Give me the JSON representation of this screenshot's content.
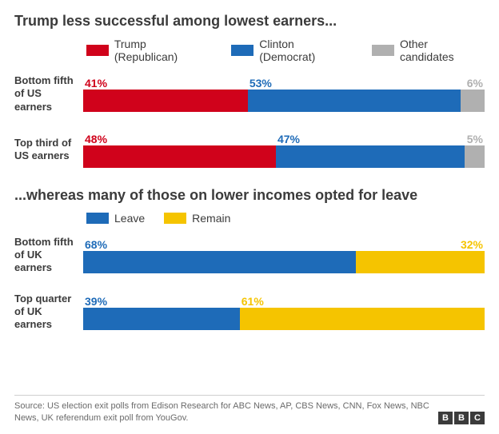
{
  "colors": {
    "trump": "#d0021b",
    "clinton": "#1e6bb8",
    "other": "#b0b0b0",
    "leave": "#1e6bb8",
    "remain": "#f5c400",
    "text": "#3b3b3b"
  },
  "section1": {
    "title": "Trump less successful among lowest earners...",
    "legend": [
      {
        "label": "Trump (Republican)",
        "colorKey": "trump"
      },
      {
        "label": "Clinton (Democrat)",
        "colorKey": "clinton"
      },
      {
        "label": "Other candidates",
        "colorKey": "other"
      }
    ],
    "rows": [
      {
        "label": "Bottom fifth of US earners",
        "segments": [
          {
            "value": 41,
            "display": "41%",
            "colorKey": "trump",
            "align": "left"
          },
          {
            "value": 53,
            "display": "53%",
            "colorKey": "clinton",
            "align": "left"
          },
          {
            "value": 6,
            "display": "6%",
            "colorKey": "other",
            "align": "right"
          }
        ]
      },
      {
        "label": "Top third of US earners",
        "segments": [
          {
            "value": 48,
            "display": "48%",
            "colorKey": "trump",
            "align": "left"
          },
          {
            "value": 47,
            "display": "47%",
            "colorKey": "clinton",
            "align": "left"
          },
          {
            "value": 5,
            "display": "5%",
            "colorKey": "other",
            "align": "right"
          }
        ]
      }
    ]
  },
  "section2": {
    "title": "...whereas many of those on lower incomes opted for leave",
    "legend": [
      {
        "label": "Leave",
        "colorKey": "leave"
      },
      {
        "label": "Remain",
        "colorKey": "remain"
      }
    ],
    "rows": [
      {
        "label": "Bottom fifth of UK earners",
        "segments": [
          {
            "value": 68,
            "display": "68%",
            "colorKey": "leave",
            "align": "left"
          },
          {
            "value": 32,
            "display": "32%",
            "colorKey": "remain",
            "align": "right"
          }
        ]
      },
      {
        "label": "Top quarter of UK earners",
        "segments": [
          {
            "value": 39,
            "display": "39%",
            "colorKey": "leave",
            "align": "left"
          },
          {
            "value": 61,
            "display": "61%",
            "colorKey": "remain",
            "align": "left"
          }
        ]
      }
    ]
  },
  "footer": {
    "source": "Source: US election exit polls from Edison Research for ABC News, AP, CBS News, CNN, Fox News, NBC News, UK referendum exit poll from YouGov.",
    "logo": [
      "B",
      "B",
      "C"
    ]
  }
}
